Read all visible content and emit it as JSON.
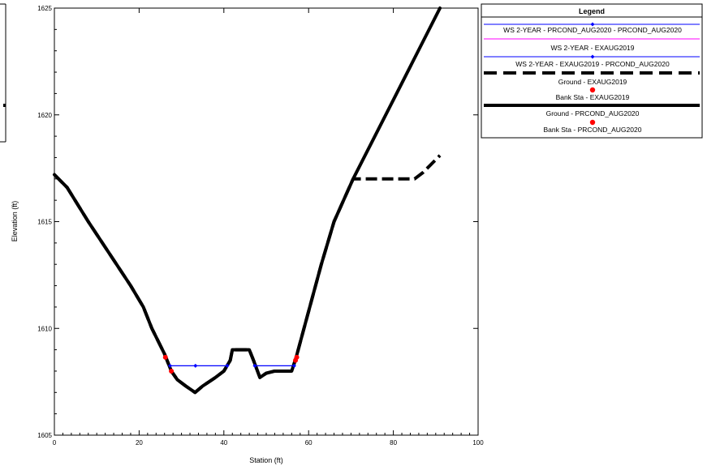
{
  "chart_data": {
    "type": "line",
    "title": "",
    "xlabel": "Station (ft)",
    "ylabel": "Elevation (ft)",
    "xlim": [
      0,
      100
    ],
    "ylim": [
      1605,
      1625
    ],
    "x_ticks": [
      0,
      20,
      40,
      60,
      80,
      100
    ],
    "y_ticks": [
      1605,
      1610,
      1615,
      1620,
      1625
    ],
    "x_tick_labels": [
      "0",
      "20",
      "40",
      "60",
      "80",
      "100"
    ],
    "y_tick_labels": [
      "1605",
      "1610",
      "1615",
      "1620",
      "1625"
    ],
    "grid": false,
    "legend": {
      "title": "Legend",
      "placement": "top-right, outside plot",
      "entries": [
        {
          "label": "WS 2-YEAR - PRCOND_AUG2020 - PRCOND_AUG2020",
          "style": "blue-line-marker"
        },
        {
          "label": "WS 2-YEAR - EXAUG2019",
          "style": "magenta-line"
        },
        {
          "label": "WS 2-YEAR - EXAUG2019 - PRCOND_AUG2020",
          "style": "blue-line-marker"
        },
        {
          "label": "Ground - EXAUG2019",
          "style": "black-thick-dashed"
        },
        {
          "label": "Bank Sta - EXAUG2019",
          "style": "red-dot"
        },
        {
          "label": "Ground - PRCOND_AUG2020",
          "style": "black-thick-solid"
        },
        {
          "label": "Bank Sta - PRCOND_AUG2020",
          "style": "red-dot"
        }
      ]
    },
    "series": [
      {
        "name": "Ground - EXAUG2019",
        "style": "black-thick-dashed",
        "x": [
          0,
          3,
          8,
          13,
          18,
          21,
          23,
          26,
          27.6,
          29,
          31,
          33.2,
          35,
          38,
          40,
          41.5,
          42,
          44,
          46,
          47,
          48.5,
          50,
          52,
          56,
          57,
          60,
          63,
          66,
          70.5,
          80,
          85,
          87,
          91
        ],
        "y": [
          1617.2,
          1616.6,
          1615,
          1613.5,
          1612,
          1611,
          1610,
          1608.8,
          1608,
          1607.6,
          1607.3,
          1607,
          1607.3,
          1607.7,
          1608,
          1608.5,
          1609,
          1609,
          1609,
          1608.5,
          1607.7,
          1607.9,
          1608,
          1608,
          1608.6,
          1610.8,
          1613,
          1615,
          1617,
          1617,
          1617,
          1617.3,
          1618.1
        ]
      },
      {
        "name": "Ground - PRCOND_AUG2020",
        "style": "black-thick-solid",
        "x": [
          0,
          3,
          8,
          13,
          18,
          21,
          23,
          26,
          27.6,
          29,
          31,
          33.2,
          35,
          38,
          40,
          41.5,
          42,
          44,
          46,
          47,
          48.5,
          50,
          52,
          56,
          57,
          60,
          63,
          66,
          70.5,
          80,
          91
        ],
        "y": [
          1617.2,
          1616.6,
          1615,
          1613.5,
          1612,
          1611,
          1610,
          1608.8,
          1608,
          1607.6,
          1607.3,
          1607,
          1607.3,
          1607.7,
          1608,
          1608.5,
          1609,
          1609,
          1609,
          1608.5,
          1607.7,
          1607.9,
          1608,
          1608,
          1608.6,
          1610.8,
          1613,
          1615,
          1617,
          1620.7,
          1625
        ]
      },
      {
        "name": "WS 2-YEAR - PRCOND_AUG2020 - PRCOND_AUG2020",
        "style": "blue-line-marker",
        "segments": [
          {
            "x": [
              27.3,
              33.3,
              40.8
            ],
            "y": [
              1608.25,
              1608.25,
              1608.25
            ]
          },
          {
            "x": [
              47.3,
              56.6
            ],
            "y": [
              1608.25,
              1608.25
            ]
          }
        ]
      },
      {
        "name": "Bank Sta - PRCOND_AUG2020",
        "style": "red-dot",
        "x": [
          27.6,
          56.9
        ],
        "y": [
          1608.0,
          1608.5
        ]
      },
      {
        "name": "Bank Sta - EXAUG2019",
        "style": "red-dot",
        "x": [
          26.2,
          57.2
        ],
        "y": [
          1608.65,
          1608.65
        ]
      }
    ]
  }
}
